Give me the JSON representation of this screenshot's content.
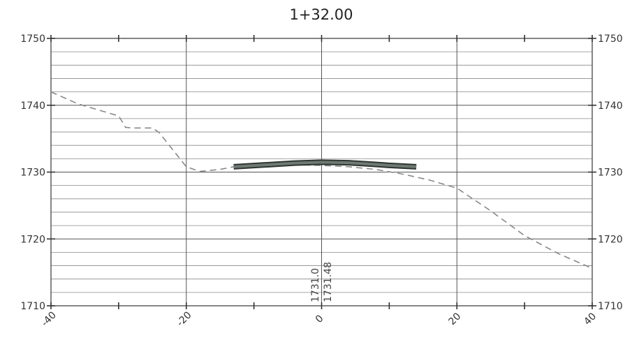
{
  "chart_data": {
    "type": "line",
    "title": "1+32.00",
    "xlabel": "",
    "ylabel": "",
    "xlim": [
      -40,
      40
    ],
    "ylim": [
      1710,
      1750
    ],
    "x_ticks": [
      -40,
      -20,
      0,
      20,
      40
    ],
    "x_tick_labels": [
      "-40",
      "-20",
      "0",
      "20",
      "40"
    ],
    "y_ticks": [
      1710,
      1720,
      1730,
      1740,
      1750
    ],
    "y_tick_labels": [
      "1710",
      "1720",
      "1730",
      "1740",
      "1750"
    ],
    "grid": true,
    "minor_grid_step_y": 2,
    "series": [
      {
        "style": "dashed",
        "color": "#888888",
        "x": [
          -40,
          -36,
          -30,
          -29.5,
          -29,
          -28,
          -25,
          -24,
          -20,
          -18,
          -15,
          -12,
          -8,
          -4,
          0,
          4,
          8,
          12,
          16,
          20,
          25,
          30,
          35,
          40
        ],
        "y": [
          1742,
          1740.2,
          1738.4,
          1737.6,
          1736.7,
          1736.6,
          1736.6,
          1735.9,
          1730.8,
          1730.1,
          1730.4,
          1731.0,
          1731.1,
          1731.1,
          1731.0,
          1730.8,
          1730.4,
          1729.7,
          1728.8,
          1727.6,
          1724.2,
          1720.5,
          1717.8,
          1715.6
        ]
      },
      {
        "style": "solid-thick",
        "color": "#4a5450",
        "x": [
          -13,
          -8,
          -4,
          0,
          4,
          8,
          10,
          14
        ],
        "y": [
          1730.8,
          1731.1,
          1731.35,
          1731.48,
          1731.4,
          1731.15,
          1731.0,
          1730.8
        ]
      }
    ],
    "annotations": [
      "1731.0",
      "1731.48"
    ]
  }
}
